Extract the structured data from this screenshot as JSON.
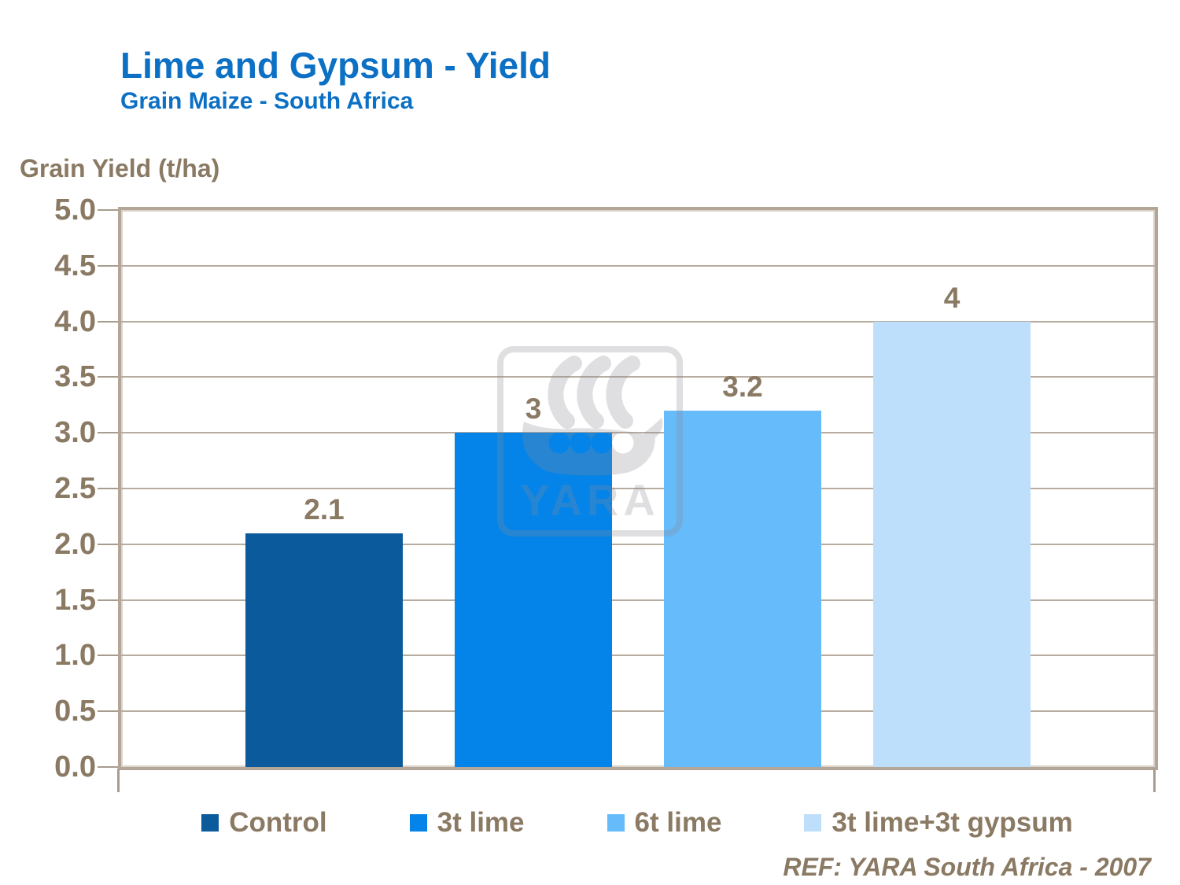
{
  "header": {
    "title": "Lime and Gypsum - Yield",
    "subtitle": "Grain Maize - South Africa"
  },
  "ref_note": "REF: YARA South Africa - 2007",
  "watermark": {
    "name": "yara-logo",
    "text": "YARA"
  },
  "colors": {
    "title_blue": "#0c70c4",
    "text_brown": "#8a7963",
    "frame_tan": "#b3a698",
    "gridline": "#b7ac9f",
    "watermark_gray": "#8b8b95"
  },
  "chart_data": {
    "type": "bar",
    "title": "Lime and Gypsum - Yield",
    "subtitle": "Grain Maize - South Africa",
    "categories": [
      "Control",
      "3t lime",
      "6t lime",
      "3t lime+3t gypsum"
    ],
    "values": [
      2.1,
      3,
      3.2,
      4
    ],
    "value_labels": [
      "2.1",
      "3",
      "3.2",
      "4"
    ],
    "series_colors": [
      "#0a5a9c",
      "#0484e8",
      "#66bbfa",
      "#bedffc"
    ],
    "xlabel": "",
    "ylabel": "Grain Yield (t/ha)",
    "ylim": [
      0,
      5
    ],
    "ytick_step": 0.5,
    "ytick_labels": [
      "0.0",
      "0.5",
      "1.0",
      "1.5",
      "2.0",
      "2.5",
      "3.0",
      "3.5",
      "4.0",
      "4.5",
      "5.0"
    ],
    "grid": true,
    "legend_position": "bottom",
    "annotation": "REF: YARA South Africa - 2007"
  }
}
